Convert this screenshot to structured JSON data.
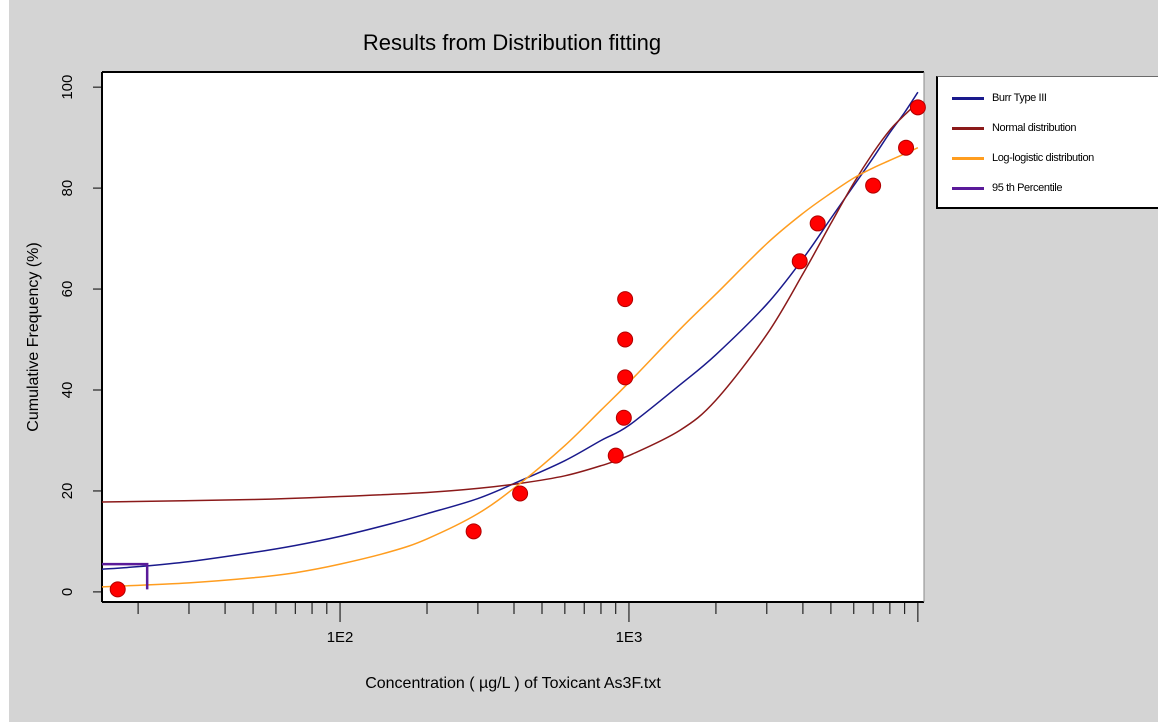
{
  "chart_data": {
    "type": "scatter",
    "title": "Results from Distribution fitting",
    "xlabel": "Concentration ( µg/L ) of Toxicant As3F.txt",
    "ylabel": "Cumulative Frequency (%)",
    "x_scale": "log",
    "xlim": [
      15,
      10500
    ],
    "ylim": [
      -2,
      103
    ],
    "x_tick_labels": [
      {
        "value": 100,
        "label": "1E2"
      },
      {
        "value": 1000,
        "label": "1E3"
      }
    ],
    "y_ticks": [
      0,
      20,
      40,
      60,
      80,
      100
    ],
    "grid": false,
    "legend_position": "right",
    "points": [
      {
        "x": 17,
        "y": 0.5
      },
      {
        "x": 290,
        "y": 12
      },
      {
        "x": 420,
        "y": 19.5
      },
      {
        "x": 900,
        "y": 27
      },
      {
        "x": 960,
        "y": 34.5
      },
      {
        "x": 970,
        "y": 42.5
      },
      {
        "x": 970,
        "y": 50
      },
      {
        "x": 970,
        "y": 58
      },
      {
        "x": 3900,
        "y": 65.5
      },
      {
        "x": 4500,
        "y": 73
      },
      {
        "x": 7000,
        "y": 80.5
      },
      {
        "x": 9100,
        "y": 88
      },
      {
        "x": 10000,
        "y": 96
      }
    ],
    "series": [
      {
        "name": "Burr Type III",
        "color": "#1a1a8c",
        "x": [
          15,
          20,
          30,
          50,
          70,
          100,
          150,
          200,
          300,
          420,
          600,
          800,
          1000,
          1500,
          2000,
          3000,
          4000,
          5000,
          6000,
          7000,
          8000,
          9000,
          10000
        ],
        "y": [
          4.5,
          5,
          6,
          7.8,
          9.2,
          11,
          13.5,
          15.5,
          18.5,
          22,
          26,
          30,
          33,
          41,
          47,
          57,
          66,
          74,
          80.5,
          86,
          91,
          95,
          99
        ]
      },
      {
        "name": "Normal distribution",
        "color": "#8b1a1a",
        "x": [
          15,
          50,
          100,
          200,
          300,
          420,
          600,
          800,
          1000,
          1500,
          2000,
          3000,
          4000,
          5000,
          6000,
          7000,
          8000,
          9000,
          10000
        ],
        "y": [
          17.8,
          18.3,
          18.9,
          19.7,
          20.5,
          21.5,
          23,
          25,
          27,
          32,
          38,
          51,
          63,
          73,
          81,
          87,
          91.5,
          94.5,
          97
        ]
      },
      {
        "name": "Log-logistic distribution",
        "color": "#ff9d1f",
        "x": [
          15,
          30,
          50,
          70,
          100,
          150,
          200,
          300,
          420,
          600,
          800,
          1000,
          1500,
          2000,
          3000,
          4000,
          5000,
          6000,
          7000,
          8000,
          9000,
          10000
        ],
        "y": [
          1,
          1.8,
          2.8,
          3.8,
          5.5,
          8,
          10.5,
          15.5,
          21.5,
          29,
          36,
          41.5,
          52,
          59,
          69,
          75,
          79,
          82,
          84,
          85.5,
          86.8,
          88
        ]
      },
      {
        "name": "95 th Percentile",
        "color": "#5a1a99",
        "x": [
          15,
          21.5,
          21.5
        ],
        "y": [
          5.5,
          5.5,
          0.5
        ]
      }
    ]
  }
}
